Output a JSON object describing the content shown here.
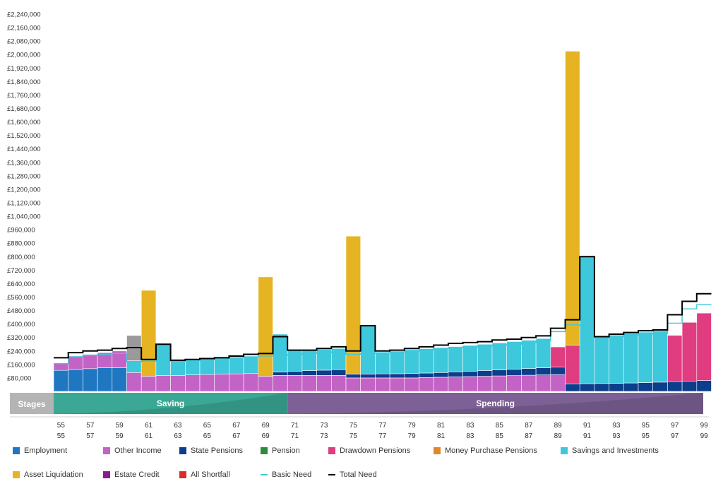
{
  "chart_data": {
    "type": "bar",
    "stacked": true,
    "currency": "£",
    "ylim": [
      0,
      2240000
    ],
    "y_ticks": [
      "£80,000",
      "£160,000",
      "£240,000",
      "£320,000",
      "£400,000",
      "£480,000",
      "£560,000",
      "£640,000",
      "£720,000",
      "£800,000",
      "£880,000",
      "£960,000",
      "£1,040,000",
      "£1,120,000",
      "£1,200,000",
      "£1,280,000",
      "£1,360,000",
      "£1,440,000",
      "£1,520,000",
      "£1,600,000",
      "£1,680,000",
      "£1,760,000",
      "£1,840,000",
      "£1,920,000",
      "£2,000,000",
      "£2,080,000",
      "£2,160,000",
      "£2,240,000"
    ],
    "x": [
      55,
      56,
      57,
      58,
      59,
      60,
      61,
      62,
      63,
      64,
      65,
      66,
      67,
      68,
      69,
      70,
      71,
      72,
      73,
      74,
      75,
      76,
      77,
      78,
      79,
      80,
      81,
      82,
      83,
      84,
      85,
      86,
      87,
      88,
      89,
      90,
      91,
      92,
      93,
      94,
      95,
      96,
      97,
      98,
      99
    ],
    "x_tick_labels": [
      "55",
      "57",
      "59",
      "61",
      "63",
      "65",
      "67",
      "69",
      "71",
      "73",
      "75",
      "77",
      "79",
      "81",
      "83",
      "85",
      "87",
      "89",
      "91",
      "93",
      "95",
      "97",
      "99"
    ],
    "stages": {
      "label": "Stages",
      "items": [
        {
          "name": "Saving",
          "from_age": 55,
          "to_age": 70,
          "color": "#3aa894"
        },
        {
          "name": "Spending",
          "from_age": 71,
          "to_age": 99,
          "color": "#7d6196"
        }
      ]
    },
    "series": [
      {
        "name": "Employment",
        "color": "#1f77c2",
        "values": [
          125000,
          130000,
          135000,
          140000,
          140000,
          0,
          0,
          0,
          0,
          0,
          0,
          0,
          0,
          0,
          0,
          0,
          0,
          0,
          0,
          0,
          0,
          0,
          0,
          0,
          0,
          0,
          0,
          0,
          0,
          0,
          0,
          0,
          0,
          0,
          0,
          0,
          0,
          0,
          0,
          0,
          0,
          0,
          0,
          0,
          0
        ]
      },
      {
        "name": "Other Income",
        "color": "#c463c6",
        "values": [
          40000,
          80000,
          85000,
          90000,
          100000,
          112000,
          90000,
          95000,
          95000,
          98000,
          100000,
          102000,
          104000,
          106000,
          90000,
          95000,
          95000,
          95000,
          95000,
          95000,
          80000,
          80000,
          80000,
          80000,
          80000,
          82000,
          84000,
          86000,
          88000,
          90000,
          92000,
          94000,
          96000,
          98000,
          100000,
          0,
          0,
          0,
          0,
          0,
          0,
          0,
          0,
          0,
          0
        ]
      },
      {
        "name": "State Pensions",
        "color": "#0d3e8c",
        "values": [
          0,
          0,
          0,
          0,
          0,
          0,
          0,
          0,
          0,
          0,
          0,
          0,
          0,
          0,
          0,
          20000,
          25000,
          28000,
          31000,
          34000,
          22000,
          23000,
          24000,
          25000,
          26000,
          27000,
          28000,
          30000,
          32000,
          34000,
          36000,
          38000,
          40000,
          42000,
          44000,
          45000,
          46000,
          47000,
          48000,
          50000,
          52000,
          55000,
          58000,
          60000,
          65000
        ]
      },
      {
        "name": "Pension",
        "color": "#2e8b3c",
        "values": [
          0,
          0,
          0,
          0,
          0,
          0,
          0,
          0,
          0,
          0,
          0,
          0,
          0,
          0,
          0,
          0,
          0,
          0,
          0,
          0,
          0,
          0,
          0,
          0,
          0,
          0,
          0,
          0,
          0,
          0,
          0,
          0,
          0,
          0,
          0,
          0,
          0,
          0,
          0,
          0,
          0,
          0,
          0,
          0,
          0
        ]
      },
      {
        "name": "Drawdown Pensions",
        "color": "#e03c80",
        "values": [
          0,
          0,
          0,
          0,
          0,
          0,
          0,
          0,
          0,
          0,
          0,
          0,
          0,
          0,
          0,
          0,
          0,
          0,
          0,
          0,
          0,
          0,
          0,
          0,
          0,
          0,
          0,
          0,
          0,
          0,
          0,
          0,
          0,
          0,
          120000,
          230000,
          0,
          0,
          0,
          0,
          0,
          0,
          275000,
          350000,
          400000
        ]
      },
      {
        "name": "Money Purchase Pensions",
        "color": "#e2862e",
        "values": [
          0,
          0,
          0,
          0,
          0,
          0,
          0,
          0,
          0,
          0,
          0,
          0,
          0,
          0,
          0,
          0,
          0,
          0,
          0,
          0,
          0,
          0,
          0,
          0,
          0,
          0,
          0,
          0,
          0,
          0,
          0,
          0,
          0,
          0,
          0,
          0,
          0,
          0,
          0,
          0,
          0,
          0,
          0,
          0,
          0
        ]
      },
      {
        "name": "Savings and Investments",
        "color": "#3ec8dc",
        "values": [
          0,
          0,
          0,
          0,
          0,
          70000,
          0,
          185000,
          90000,
          88000,
          90000,
          96000,
          100000,
          102000,
          0,
          225000,
          123000,
          122000,
          124000,
          126000,
          0,
          290000,
          128000,
          132000,
          142000,
          145000,
          148000,
          150000,
          153000,
          156000,
          160000,
          164000,
          168000,
          174000,
          0,
          0,
          755000,
          280000,
          287000,
          295000,
          300000,
          305000,
          0,
          0,
          0
        ]
      },
      {
        "name": "Asset Liquidation",
        "color": "#e6b422",
        "values": [
          0,
          0,
          0,
          0,
          0,
          0,
          510000,
          0,
          0,
          0,
          0,
          0,
          0,
          0,
          590000,
          0,
          0,
          0,
          0,
          0,
          820000,
          0,
          0,
          0,
          0,
          0,
          0,
          0,
          0,
          0,
          0,
          0,
          0,
          0,
          0,
          1745000,
          0,
          0,
          0,
          0,
          0,
          0,
          0,
          0,
          0
        ]
      },
      {
        "name": "Estate Credit",
        "color": "#8b1a8e",
        "values": [
          0,
          0,
          0,
          0,
          0,
          0,
          0,
          0,
          0,
          0,
          0,
          0,
          0,
          0,
          0,
          0,
          0,
          0,
          0,
          0,
          0,
          0,
          0,
          0,
          0,
          0,
          0,
          0,
          0,
          0,
          0,
          0,
          0,
          0,
          0,
          0,
          0,
          0,
          0,
          0,
          0,
          0,
          0,
          0,
          0
        ]
      },
      {
        "name": "All Shortfall",
        "color": "#d92b2b",
        "values": [
          0,
          0,
          0,
          0,
          0,
          0,
          0,
          0,
          0,
          0,
          0,
          0,
          0,
          0,
          0,
          0,
          0,
          0,
          0,
          0,
          0,
          0,
          0,
          0,
          0,
          0,
          0,
          0,
          0,
          0,
          0,
          0,
          0,
          0,
          0,
          0,
          0,
          0,
          0,
          0,
          0,
          0,
          0,
          0,
          0
        ]
      }
    ],
    "unlabelled_bar": {
      "color": "#9a9a9a",
      "values": [
        0,
        0,
        0,
        0,
        0,
        150000,
        0,
        0,
        0,
        0,
        0,
        0,
        0,
        0,
        0,
        0,
        0,
        0,
        0,
        0,
        0,
        0,
        0,
        0,
        0,
        0,
        0,
        0,
        0,
        0,
        0,
        0,
        0,
        0,
        0,
        0,
        0,
        0,
        0,
        0,
        0,
        0,
        0,
        0,
        0
      ]
    },
    "lines": [
      {
        "name": "Basic Need",
        "color": "#3ec8dc",
        "values": [
          165000,
          205000,
          215000,
          220000,
          225000,
          175000,
          180000,
          180000,
          180000,
          185000,
          190000,
          195000,
          200000,
          205000,
          210000,
          215000,
          220000,
          225000,
          230000,
          235000,
          220000,
          225000,
          230000,
          235000,
          240000,
          245000,
          255000,
          260000,
          265000,
          270000,
          275000,
          280000,
          290000,
          300000,
          355000,
          395000,
          390000,
          320000,
          325000,
          335000,
          340000,
          345000,
          405000,
          490000,
          515000
        ]
      },
      {
        "name": "Total Need",
        "color": "#000000",
        "values": [
          200000,
          230000,
          240000,
          245000,
          255000,
          260000,
          190000,
          280000,
          185000,
          190000,
          195000,
          200000,
          210000,
          220000,
          225000,
          325000,
          245000,
          245000,
          255000,
          265000,
          240000,
          390000,
          240000,
          245000,
          255000,
          265000,
          275000,
          285000,
          290000,
          295000,
          305000,
          310000,
          320000,
          330000,
          375000,
          425000,
          800000,
          325000,
          340000,
          350000,
          360000,
          365000,
          455000,
          535000,
          580000
        ]
      }
    ],
    "legend": {
      "placement": "bottom",
      "rows": [
        [
          "Employment",
          "Other Income",
          "State Pensions",
          "Pension",
          "Drawdown Pensions",
          "Money Purchase Pensions",
          "Savings and Investments"
        ],
        [
          "Asset Liquidation",
          "Estate Credit",
          "All Shortfall",
          "Basic Need",
          "Total Need"
        ]
      ]
    }
  }
}
